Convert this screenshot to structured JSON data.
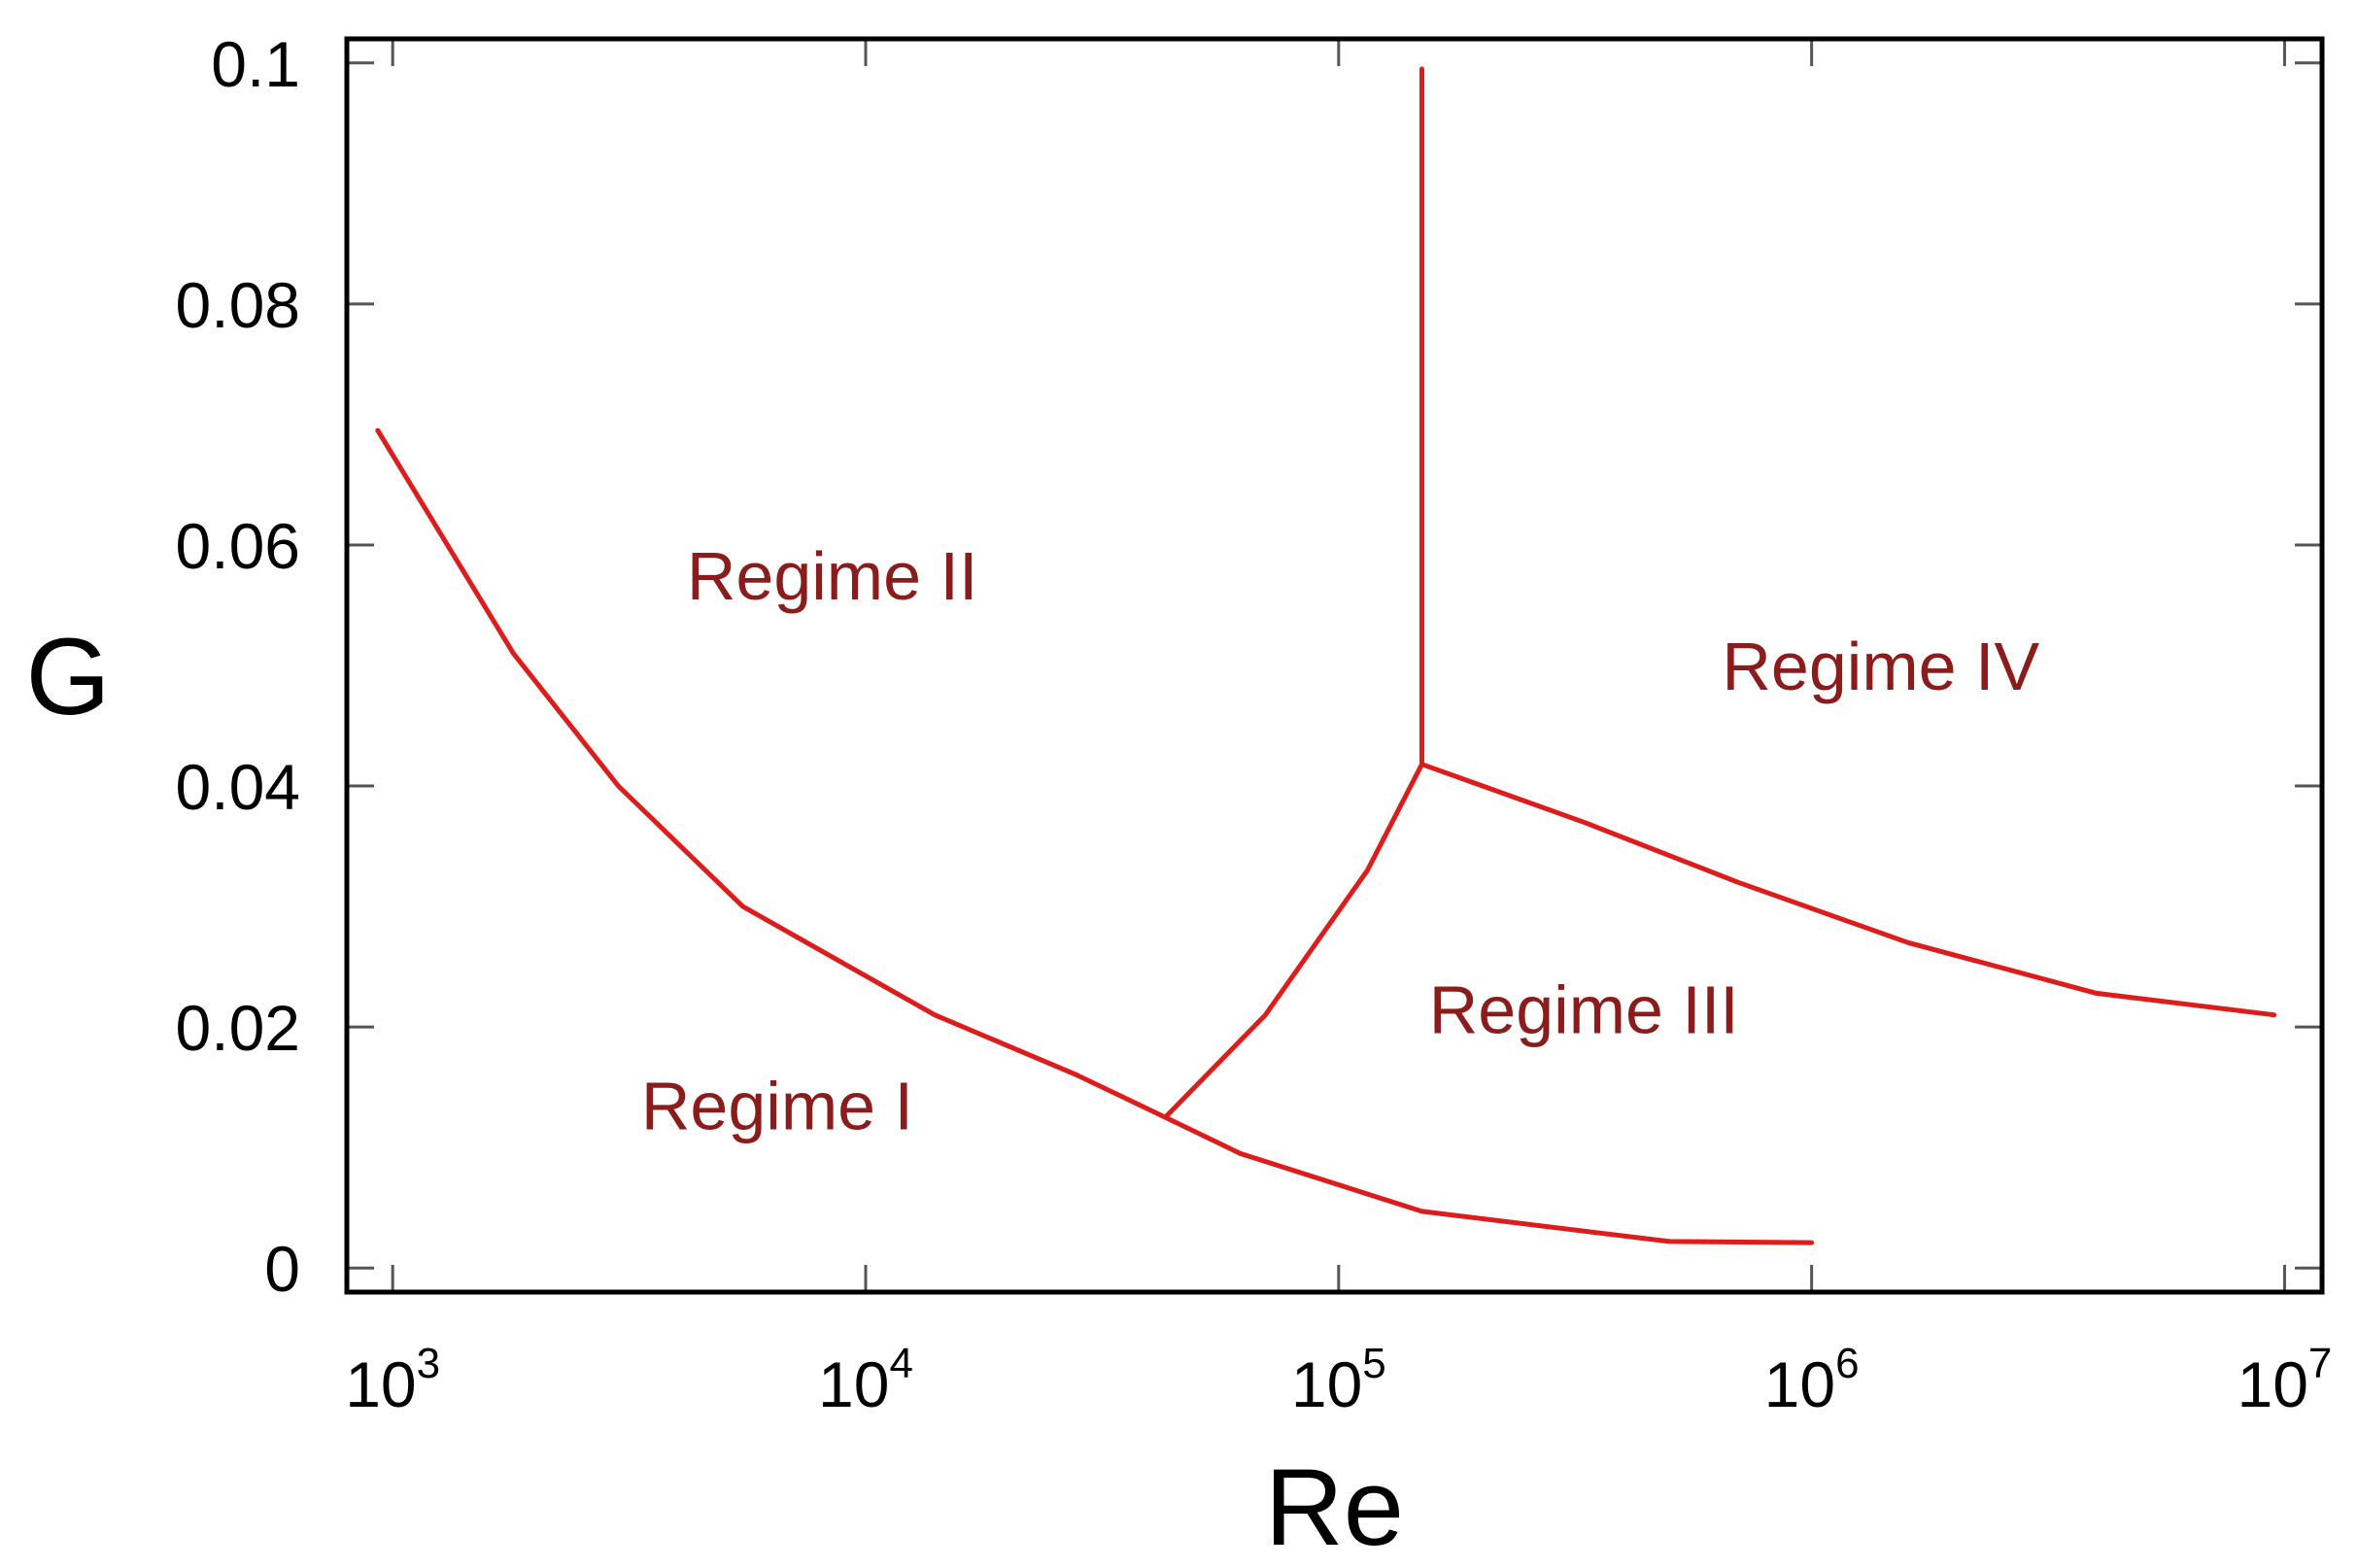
{
  "chart_data": {
    "type": "line",
    "xlabel": "Re",
    "ylabel": "G",
    "xscale": "log",
    "xlim": [
      800,
      12000000
    ],
    "ylim": [
      -0.002,
      0.102
    ],
    "x_ticks": [
      {
        "value": 1000,
        "base": "10",
        "exp": "3"
      },
      {
        "value": 10000,
        "base": "10",
        "exp": "4"
      },
      {
        "value": 100000,
        "base": "10",
        "exp": "5"
      },
      {
        "value": 1000000,
        "base": "10",
        "exp": "6"
      },
      {
        "value": 10000000,
        "base": "10",
        "exp": "7"
      }
    ],
    "y_ticks": [
      {
        "value": 0,
        "label": "0"
      },
      {
        "value": 0.02,
        "label": "0.02"
      },
      {
        "value": 0.04,
        "label": "0.04"
      },
      {
        "value": 0.06,
        "label": "0.06"
      },
      {
        "value": 0.08,
        "label": "0.08"
      },
      {
        "value": 0.1,
        "label": "0.1"
      }
    ],
    "grid": false,
    "color": "#dd1c1c",
    "label_color": "#8b1c1c",
    "series": [
      {
        "points": [
          [
            930,
            0.0695
          ],
          [
            1800,
            0.051
          ],
          [
            3000,
            0.04
          ],
          [
            5500,
            0.03
          ],
          [
            14000,
            0.021
          ],
          [
            28000,
            0.016
          ],
          [
            43000,
            0.0125
          ],
          [
            62000,
            0.0095
          ],
          [
            150000,
            0.0047
          ],
          [
            500000,
            0.0022
          ],
          [
            1000000,
            0.0021
          ]
        ]
      },
      {
        "points": [
          [
            43000,
            0.0125
          ],
          [
            70000,
            0.021
          ],
          [
            115000,
            0.033
          ],
          [
            150000,
            0.0418
          ]
        ]
      },
      {
        "points": [
          [
            150000,
            0.0418
          ],
          [
            150000,
            0.0995
          ]
        ]
      },
      {
        "points": [
          [
            150000,
            0.0418
          ],
          [
            330000,
            0.037
          ],
          [
            700000,
            0.032
          ],
          [
            1600000,
            0.027
          ],
          [
            4000000,
            0.0228
          ],
          [
            9500000,
            0.021
          ]
        ]
      }
    ],
    "annotations": [
      {
        "text": "Regime I",
        "x": 6500,
        "y": 0.0115
      },
      {
        "text": "Regime II",
        "x": 8500,
        "y": 0.0555
      },
      {
        "text": "Regime III",
        "x": 330000,
        "y": 0.0195
      },
      {
        "text": "Regime IV",
        "x": 1400000,
        "y": 0.048
      }
    ]
  }
}
